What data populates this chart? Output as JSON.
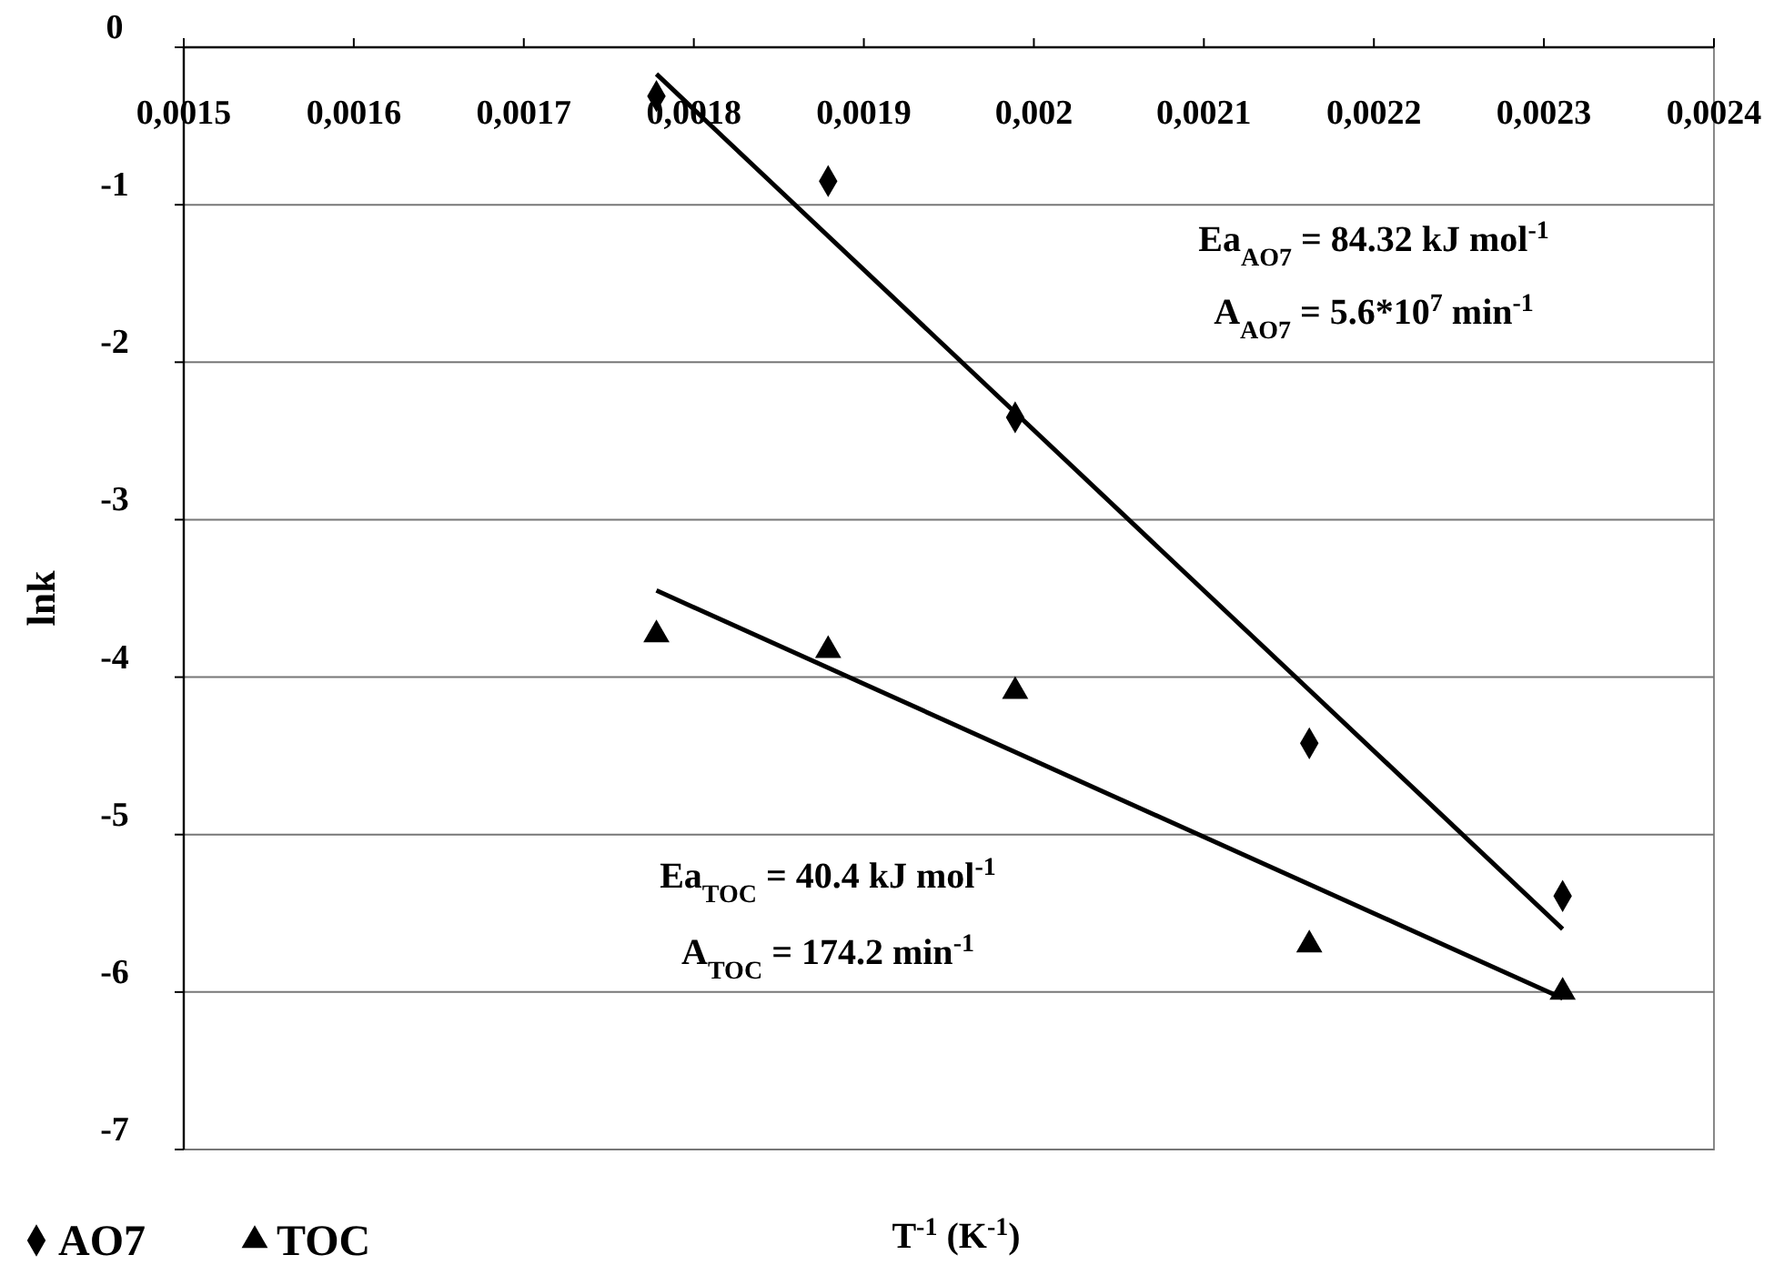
{
  "chart_data": {
    "type": "scatter",
    "xlabel": "T$^{-1}$ (K$^{-1}$)",
    "ylabel": "lnk",
    "xlim": [
      0.0015,
      0.0024
    ],
    "ylim": [
      -7,
      0
    ],
    "xticks": [
      {
        "value": 0.0015,
        "label": "0,0015"
      },
      {
        "value": 0.0016,
        "label": "0,0016"
      },
      {
        "value": 0.0017,
        "label": "0,0017"
      },
      {
        "value": 0.0018,
        "label": "0,0018"
      },
      {
        "value": 0.0019,
        "label": "0,0019"
      },
      {
        "value": 0.002,
        "label": "0,002"
      },
      {
        "value": 0.0021,
        "label": "0,0021"
      },
      {
        "value": 0.0022,
        "label": "0,0022"
      },
      {
        "value": 0.0023,
        "label": "0,0023"
      },
      {
        "value": 0.0024,
        "label": "0,0024"
      }
    ],
    "yticks": [
      0,
      -1,
      -2,
      -3,
      -4,
      -5,
      -6,
      -7
    ],
    "grid": "y",
    "legend": "bottom left",
    "series": [
      {
        "name": "AO7",
        "color": "#000000",
        "marker": "diamond",
        "x": [
          0.001778,
          0.001879,
          0.001989,
          0.002162,
          0.002311
        ],
        "values": [
          -0.31,
          -0.85,
          -2.35,
          -4.42,
          -5.39
        ]
      },
      {
        "name": "TOC",
        "color": "#000000",
        "marker": "triangle",
        "x": [
          0.001778,
          0.001879,
          0.001989,
          0.002162,
          0.002311
        ],
        "values": [
          -3.73,
          -3.83,
          -4.09,
          -5.7,
          -6.0
        ]
      },
      {
        "type": "line",
        "color": "#000000",
        "marker": "none",
        "x": [
          0.001778,
          0.002311
        ],
        "values": [
          -0.17,
          -5.6
        ]
      },
      {
        "type": "line",
        "color": "#000000",
        "marker": "none",
        "x": [
          0.001778,
          0.002311
        ],
        "values": [
          -3.45,
          -6.04
        ]
      }
    ],
    "annotations": [
      "Ea$_{AO7}$ = 84.32 kJ mol$^{-1}$",
      "A$_{AO7}$ = 5.6*10$^{7}$ min$^{-1}$",
      "Ea$_{TOC}$ = 40.4 kJ mol$^{-1}$",
      "A$_{TOC}$ = 174.2 min$^{-1}$"
    ]
  }
}
